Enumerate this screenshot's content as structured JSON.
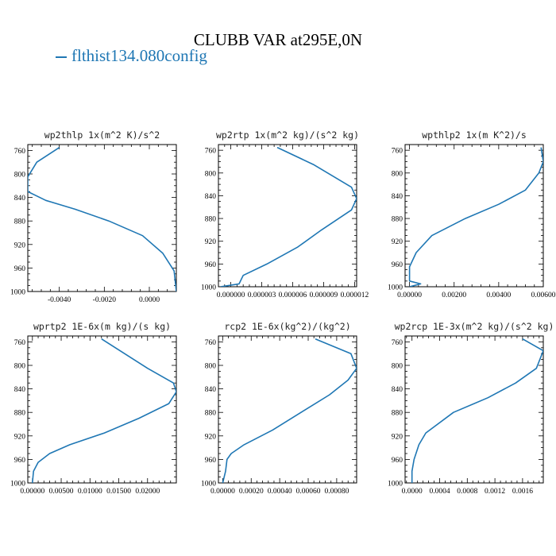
{
  "title": "CLUBB VAR at295E,0N",
  "legend": {
    "label": "flthist134.080config",
    "color": "#1f77b4"
  },
  "chart_data": [
    {
      "type": "line",
      "title": "wp2thlp  1x(m^2 K)/s^2",
      "xlim": [
        -0.0054,
        0.0012
      ],
      "ylim": [
        1000,
        750
      ],
      "xticks": [
        -0.004,
        -0.002,
        0.0
      ],
      "xtick_labels": [
        "-0.0040",
        "-0.0020",
        "0.0000"
      ],
      "yticks": [
        760,
        800,
        840,
        880,
        920,
        960,
        1000
      ],
      "series": [
        {
          "x": [
            -0.004,
            -0.005,
            -0.0054,
            -0.0054,
            -0.0046,
            -0.0033,
            -0.0018,
            -0.0003,
            0.0006,
            0.0011,
            0.0012
          ],
          "y": [
            755,
            780,
            805,
            830,
            845,
            860,
            880,
            905,
            935,
            965,
            1000
          ]
        }
      ]
    },
    {
      "type": "line",
      "title": "wp2rtp  1x(m^2 kg)/(s^2 kg)",
      "xlim": [
        -1.2e-06,
        1.22e-05
      ],
      "ylim": [
        1000,
        750
      ],
      "xticks": [
        0,
        3e-06,
        6e-06,
        9e-06,
        1.2e-05
      ],
      "xtick_labels": [
        "0.000000",
        "0.000003",
        "0.000006",
        "0.000009",
        "0.000012"
      ],
      "yticks": [
        760,
        800,
        840,
        880,
        920,
        960,
        1000
      ],
      "series": [
        {
          "x": [
            4.5e-06,
            8e-06,
            1.17e-05,
            1.22e-05,
            1.17e-05,
            8.8e-06,
            6.5e-06,
            3.5e-06,
            1.2e-06,
            8e-07,
            -1e-06
          ],
          "y": [
            755,
            785,
            825,
            845,
            865,
            900,
            930,
            960,
            980,
            995,
            1000
          ]
        }
      ]
    },
    {
      "type": "line",
      "title": "wpthlp2  1x(m K^2)/s",
      "xlim": [
        -0.0002,
        0.006
      ],
      "ylim": [
        1000,
        750
      ],
      "xticks": [
        0,
        0.002,
        0.004,
        0.006
      ],
      "xtick_labels": [
        "0.00000",
        "0.00200",
        "0.00400",
        "0.00600"
      ],
      "yticks": [
        760,
        800,
        840,
        880,
        920,
        960,
        1000
      ],
      "series": [
        {
          "x": [
            0.0059,
            0.006,
            0.0058,
            0.0052,
            0.004,
            0.0025,
            0.001,
            0.0003,
            0.0,
            0.0,
            0.0005,
            0.0
          ],
          "y": [
            755,
            780,
            800,
            830,
            855,
            880,
            910,
            940,
            965,
            990,
            995,
            1000
          ]
        }
      ]
    },
    {
      "type": "line",
      "title": "wprtp2  1E-6x(m kg)/(s kg)",
      "xlim": [
        -0.0008,
        0.025
      ],
      "ylim": [
        1000,
        750
      ],
      "xticks": [
        0,
        0.005,
        0.01,
        0.015,
        0.02
      ],
      "xtick_labels": [
        "0.00000",
        "0.00500",
        "0.01000",
        "0.01500",
        "0.02000"
      ],
      "yticks": [
        760,
        800,
        840,
        880,
        920,
        960,
        1000
      ],
      "series": [
        {
          "x": [
            0.012,
            0.02,
            0.0245,
            0.025,
            0.0237,
            0.0185,
            0.0125,
            0.0065,
            0.003,
            0.001,
            0.0002,
            0.0
          ],
          "y": [
            755,
            805,
            830,
            845,
            865,
            890,
            915,
            935,
            950,
            965,
            980,
            1000
          ]
        }
      ]
    },
    {
      "type": "line",
      "title": "rcp2  1E-6x(kg^2)/(kg^2)",
      "xlim": [
        -3e-05,
        0.00094
      ],
      "ylim": [
        1000,
        750
      ],
      "xticks": [
        0,
        0.0002,
        0.0004,
        0.0006,
        0.0008
      ],
      "xtick_labels": [
        "0.00000",
        "0.00020",
        "0.00040",
        "0.00060",
        "0.00080"
      ],
      "yticks": [
        760,
        800,
        840,
        880,
        920,
        960,
        1000
      ],
      "series": [
        {
          "x": [
            0.00065,
            0.0009,
            0.00094,
            0.00088,
            0.00075,
            0.00055,
            0.00035,
            0.00015,
            6e-05,
            3e-05,
            2e-05,
            0.0
          ],
          "y": [
            755,
            780,
            805,
            825,
            850,
            880,
            910,
            935,
            950,
            960,
            980,
            1000
          ]
        }
      ]
    },
    {
      "type": "line",
      "title": "wp2rcp  1E-3x(m^2 kg)/(s^2 kg)",
      "xlim": [
        -0.0001,
        0.0019
      ],
      "ylim": [
        1000,
        750
      ],
      "xticks": [
        0,
        0.0004,
        0.0008,
        0.0012,
        0.0016
      ],
      "xtick_labels": [
        "0.0000",
        "0.0004",
        "0.0008",
        "0.0012",
        "0.0016"
      ],
      "yticks": [
        760,
        800,
        840,
        880,
        920,
        960,
        1000
      ],
      "series": [
        {
          "x": [
            0.0016,
            0.0019,
            0.0018,
            0.0015,
            0.0011,
            0.0006,
            0.0002,
            0.0001,
            3e-05,
            0.0,
            0.0
          ],
          "y": [
            755,
            775,
            805,
            830,
            855,
            880,
            915,
            935,
            960,
            980,
            1000
          ]
        }
      ]
    }
  ]
}
